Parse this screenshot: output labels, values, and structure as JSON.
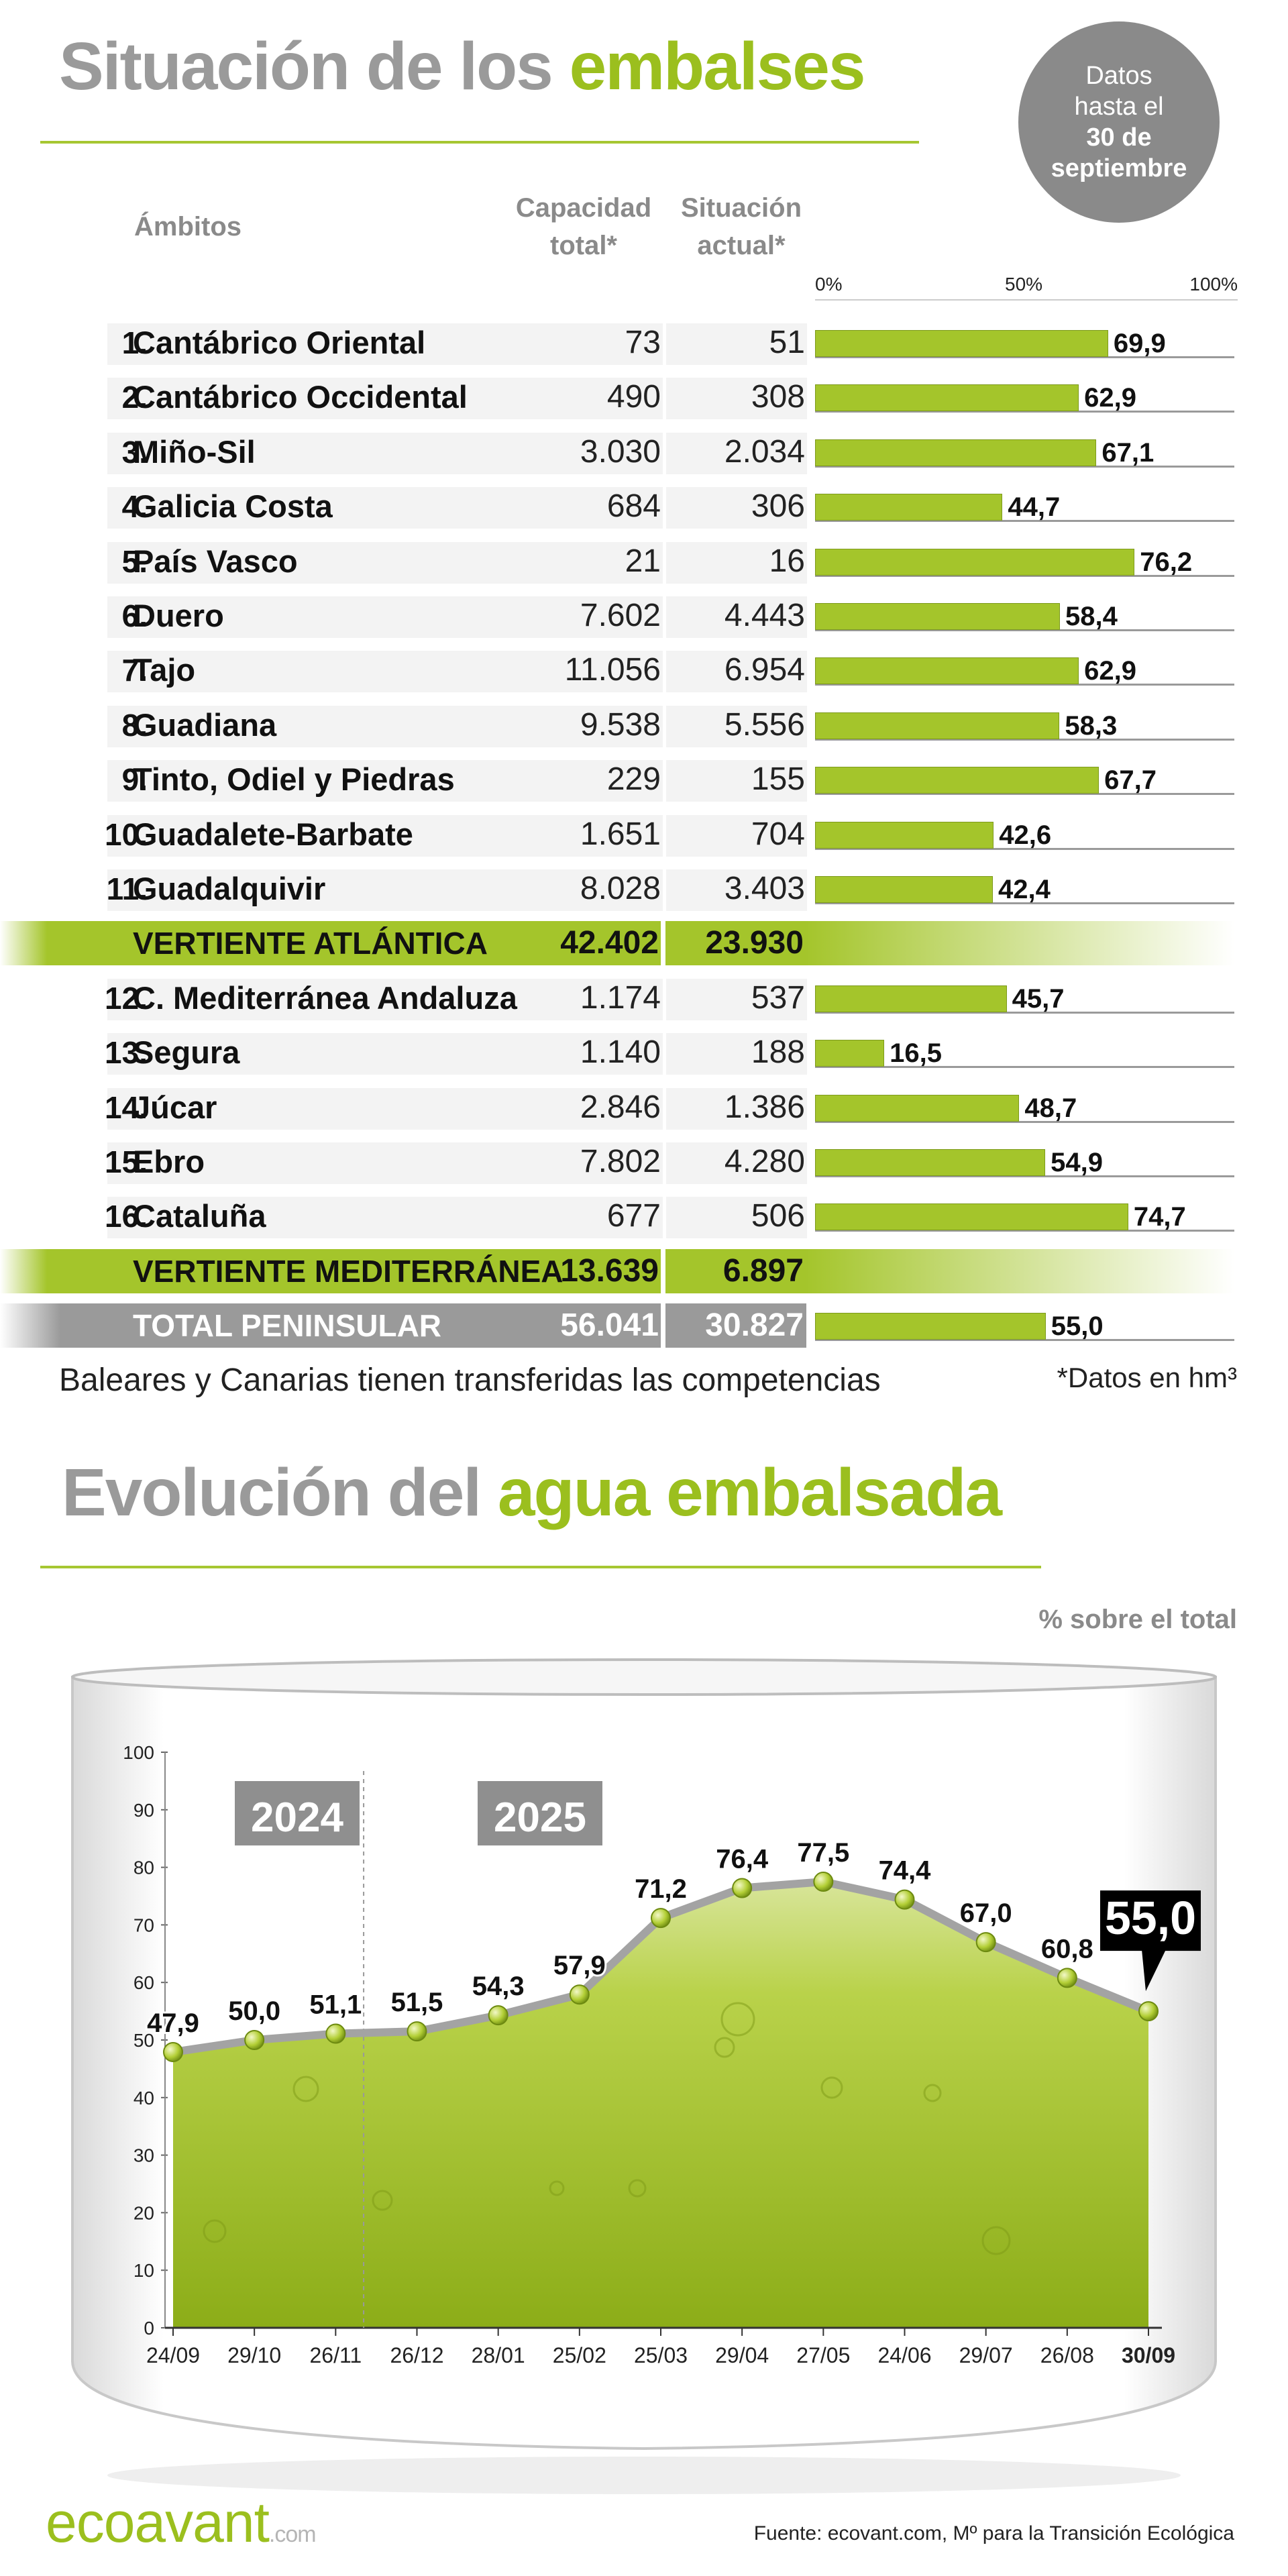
{
  "header": {
    "title_part1": "Situación de los",
    "title_part2": "embalses",
    "badge_line1": "Datos",
    "badge_line2": "hasta el",
    "badge_line3": "30 de",
    "badge_line4": "septiembre"
  },
  "table": {
    "col_ambitos": "Ámbitos",
    "col_capacidad_1": "Capacidad",
    "col_capacidad_2": "total*",
    "col_situacion_1": "Situación",
    "col_situacion_2": "actual*",
    "scale_0": "0%",
    "scale_50": "50%",
    "scale_100": "100%",
    "rows": [
      {
        "num": "1.",
        "name": "Cantábrico Oriental",
        "capacidad": "73",
        "actual": "51",
        "pct": 69.9,
        "pct_label": "69,9"
      },
      {
        "num": "2.",
        "name": "Cantábrico Occidental",
        "capacidad": "490",
        "actual": "308",
        "pct": 62.9,
        "pct_label": "62,9"
      },
      {
        "num": "3.",
        "name": "Miño-Sil",
        "capacidad": "3.030",
        "actual": "2.034",
        "pct": 67.1,
        "pct_label": "67,1"
      },
      {
        "num": "4.",
        "name": "Galicia Costa",
        "capacidad": "684",
        "actual": "306",
        "pct": 44.7,
        "pct_label": "44,7"
      },
      {
        "num": "5.",
        "name": "País Vasco",
        "capacidad": "21",
        "actual": "16",
        "pct": 76.2,
        "pct_label": "76,2"
      },
      {
        "num": "6.",
        "name": "Duero",
        "capacidad": "7.602",
        "actual": "4.443",
        "pct": 58.4,
        "pct_label": "58,4"
      },
      {
        "num": "7.",
        "name": "Tajo",
        "capacidad": "11.056",
        "actual": "6.954",
        "pct": 62.9,
        "pct_label": "62,9"
      },
      {
        "num": "8.",
        "name": "Guadiana",
        "capacidad": "9.538",
        "actual": "5.556",
        "pct": 58.3,
        "pct_label": "58,3"
      },
      {
        "num": "9.",
        "name": "Tinto, Odiel y Piedras",
        "capacidad": "229",
        "actual": "155",
        "pct": 67.7,
        "pct_label": "67,7"
      },
      {
        "num": "10.",
        "name": "Guadalete-Barbate",
        "capacidad": "1.651",
        "actual": "704",
        "pct": 42.6,
        "pct_label": "42,6"
      },
      {
        "num": "11.",
        "name": "Guadalquivir",
        "capacidad": "8.028",
        "actual": "3.403",
        "pct": 42.4,
        "pct_label": "42,4"
      },
      {
        "num": "12.",
        "name": "C. Mediterránea Andaluza",
        "capacidad": "1.174",
        "actual": "537",
        "pct": 45.7,
        "pct_label": "45,7"
      },
      {
        "num": "13.",
        "name": "Segura",
        "capacidad": "1.140",
        "actual": "188",
        "pct": 16.5,
        "pct_label": "16,5"
      },
      {
        "num": "14.",
        "name": "Júcar",
        "capacidad": "2.846",
        "actual": "1.386",
        "pct": 48.7,
        "pct_label": "48,7"
      },
      {
        "num": "15.",
        "name": "Ebro",
        "capacidad": "7.802",
        "actual": "4.280",
        "pct": 54.9,
        "pct_label": "54,9"
      },
      {
        "num": "16.",
        "name": "Cataluña",
        "capacidad": "677",
        "actual": "506",
        "pct": 74.7,
        "pct_label": "74,7"
      }
    ],
    "atlantica": {
      "name": "VERTIENTE ATLÁNTICA",
      "capacidad": "42.402",
      "actual": "23.930"
    },
    "mediterranea": {
      "name": "VERTIENTE MEDITERRÁNEA",
      "capacidad": "13.639",
      "actual": "6.897"
    },
    "total": {
      "name": "TOTAL PENINSULAR",
      "capacidad": "56.041",
      "actual": "30.827",
      "pct": 55.0,
      "pct_label": "55,0"
    }
  },
  "notes": {
    "left": "Baleares y Canarias tienen transferidas las competencias",
    "right": "*Datos en hm³"
  },
  "chart_header": {
    "title_part1": "Evolución del",
    "title_part2": "agua embalsada",
    "unit": "% sobre el total"
  },
  "chart_data": {
    "type": "area",
    "title": "Evolución del agua embalsada",
    "ylabel": "% sobre el total",
    "ylim": [
      0,
      100
    ],
    "yticks": [
      0,
      10,
      20,
      30,
      40,
      50,
      60,
      70,
      80,
      90,
      100
    ],
    "categories": [
      "24/09",
      "29/10",
      "26/11",
      "26/12",
      "28/01",
      "25/02",
      "25/03",
      "29/04",
      "27/05",
      "24/06",
      "29/07",
      "26/08",
      "30/09"
    ],
    "values": [
      47.9,
      50.0,
      51.1,
      51.5,
      54.3,
      57.9,
      71.2,
      76.4,
      77.5,
      74.4,
      67.0,
      60.8,
      55.0
    ],
    "value_labels": [
      "47,9",
      "50,0",
      "51,1",
      "51,5",
      "54,3",
      "57,9",
      "71,2",
      "76,4",
      "77,5",
      "74,4",
      "67,0",
      "60,8",
      "55,0"
    ],
    "year_labels": [
      "2024",
      "2025"
    ],
    "grid": false,
    "colors": {
      "fill": "#a8c62e",
      "line": "#9a9a9a",
      "highlight_box": "#000000"
    }
  },
  "footer": {
    "logo_main": "ecoavant",
    "logo_suffix": ".com",
    "source": "Fuente: ecovant.com, Mº para la Transición Ecológica"
  }
}
